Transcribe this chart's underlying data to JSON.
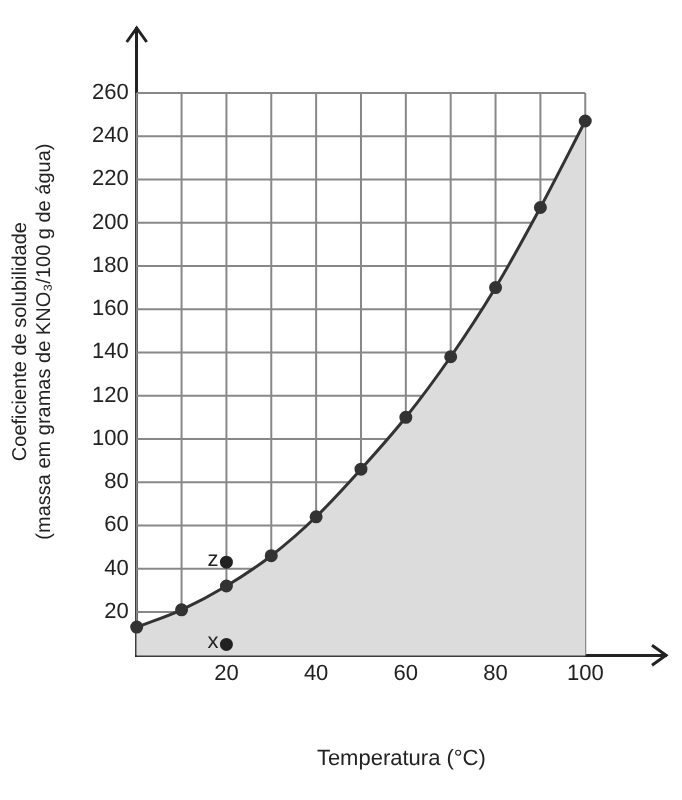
{
  "chart_data": {
    "type": "area",
    "xlabel": "Temperatura (°C)",
    "ylabel": [
      "Coeficiente de solubilidade",
      "(massa em gramas de KNO₃/100 g de água)"
    ],
    "x": [
      0,
      10,
      20,
      30,
      40,
      50,
      60,
      70,
      80,
      90,
      100
    ],
    "series": [
      {
        "color": "#333333",
        "values": [
          13,
          21,
          32,
          46,
          64,
          86,
          110,
          138,
          170,
          207,
          247
        ]
      },
      {
        "type": "scatter",
        "color": "#222222",
        "x": [
          20
        ],
        "values": [
          43
        ]
      },
      {
        "type": "scatter",
        "color": "#222222",
        "x": [
          20
        ],
        "values": [
          5
        ]
      }
    ],
    "annotations": [
      {
        "text": "z",
        "x": 20,
        "y": 43
      },
      {
        "text": "x",
        "x": 20,
        "y": 5
      }
    ],
    "xlim": [
      0,
      118
    ],
    "xticks": [
      {
        "value": 0,
        "label": null
      },
      {
        "value": 10,
        "label": null
      },
      20,
      {
        "value": 30,
        "label": null
      },
      40,
      {
        "value": 50,
        "label": null
      },
      60,
      {
        "value": 70,
        "label": null
      },
      80,
      {
        "value": 90,
        "label": null
      },
      100
    ],
    "ylim": [
      0,
      290
    ],
    "yticks": [
      {
        "value": 0,
        "label": null
      },
      20,
      40,
      60,
      80,
      100,
      120,
      140,
      160,
      180,
      200,
      220,
      240,
      260
    ],
    "grid": true,
    "marker": "circle",
    "legend": false
  }
}
